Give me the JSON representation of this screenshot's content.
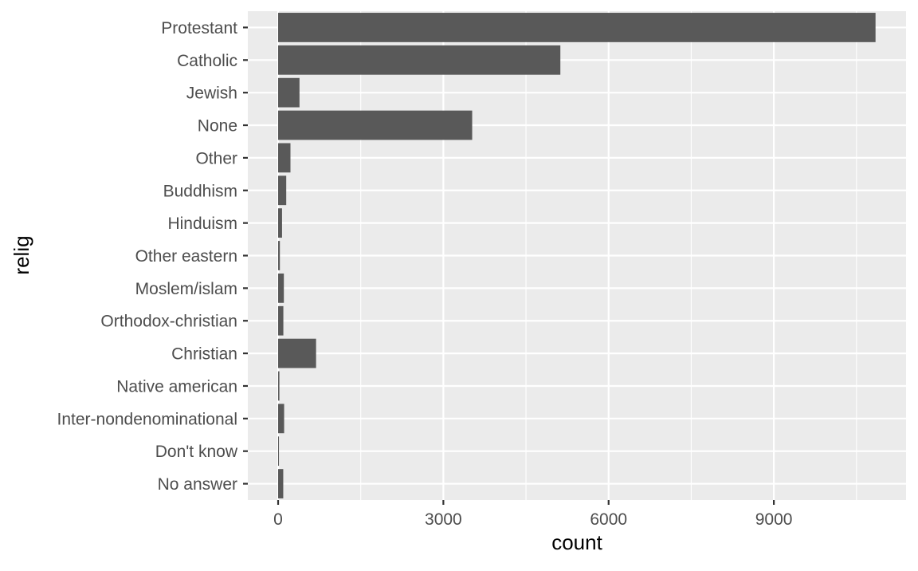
{
  "chart_data": {
    "type": "bar",
    "orientation": "horizontal",
    "title": "",
    "xlabel": "count",
    "ylabel": "relig",
    "categories": [
      "Protestant",
      "Catholic",
      "Jewish",
      "None",
      "Other",
      "Buddhism",
      "Hinduism",
      "Other eastern",
      "Moslem/islam",
      "Orthodox-christian",
      "Christian",
      "Native american",
      "Inter-nondenominational",
      "Don't know",
      "No answer"
    ],
    "values": [
      10846,
      5124,
      388,
      3523,
      224,
      147,
      71,
      32,
      104,
      95,
      689,
      23,
      109,
      15,
      93
    ],
    "xlim": [
      -550,
      11400
    ],
    "xticks": [
      0,
      3000,
      6000,
      9000
    ],
    "xtick_labels": [
      "0",
      "3000",
      "6000",
      "9000"
    ],
    "x_minor_ticks": [
      1500,
      4500,
      7500,
      10500
    ],
    "grid": true,
    "legend": "none",
    "colors": {
      "bar": "#595959",
      "panel": "#ebebeb",
      "grid": "#ffffff",
      "tick_text": "#4d4d4d",
      "tick_mark": "#333333",
      "axis_title": "#000000"
    }
  }
}
